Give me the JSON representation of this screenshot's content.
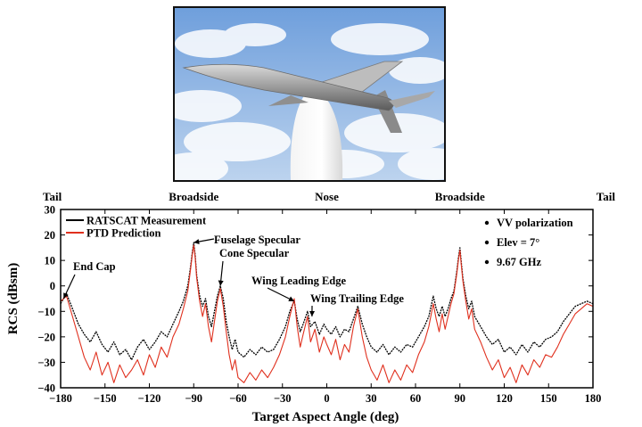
{
  "photo": {
    "icon": "airplane-model-on-pylon-icon",
    "sky_color": "#8fb8e8"
  },
  "chart_data": {
    "type": "line",
    "xlabel": "Target Aspect Angle (deg)",
    "ylabel": "RCS (dBsm)",
    "xlim": [
      -180,
      180
    ],
    "ylim": [
      -40,
      30
    ],
    "x_ticks": [
      -180,
      -150,
      -120,
      -90,
      -60,
      -30,
      0,
      30,
      60,
      90,
      120,
      150,
      180
    ],
    "y_ticks": [
      30,
      20,
      10,
      0,
      -10,
      -20,
      -30,
      -40
    ],
    "x_tick_labels": [
      "−180",
      "−150",
      "−120",
      "−90",
      "−60",
      "−30",
      "0",
      "30",
      "60",
      "90",
      "120",
      "150",
      "180"
    ],
    "y_tick_labels": [
      "30",
      "20",
      "10",
      "0",
      "−10",
      "−20",
      "−30",
      "−40"
    ],
    "grid": false,
    "legend_placement": "top-left",
    "top_labels": [
      {
        "text": "Tail",
        "x": -180
      },
      {
        "text": "Broadside",
        "x": -90
      },
      {
        "text": "Nose",
        "x": 0
      },
      {
        "text": "Broadside",
        "x": 90
      },
      {
        "text": "Tail",
        "x": 180
      }
    ],
    "info_lines": [
      "VV polarization",
      "Elev = 7°",
      "9.67 GHz"
    ],
    "series": [
      {
        "name": "RATSCAT Measurement",
        "color": "#000000",
        "points": [
          [
            -180,
            -7
          ],
          [
            -176,
            -3
          ],
          [
            -172,
            -9
          ],
          [
            -168,
            -15
          ],
          [
            -164,
            -19
          ],
          [
            -160,
            -22
          ],
          [
            -156,
            -18
          ],
          [
            -152,
            -23
          ],
          [
            -148,
            -26
          ],
          [
            -144,
            -22
          ],
          [
            -140,
            -27
          ],
          [
            -136,
            -25
          ],
          [
            -132,
            -29
          ],
          [
            -128,
            -24
          ],
          [
            -124,
            -21
          ],
          [
            -120,
            -25
          ],
          [
            -116,
            -22
          ],
          [
            -112,
            -18
          ],
          [
            -108,
            -20
          ],
          [
            -104,
            -15
          ],
          [
            -100,
            -10
          ],
          [
            -97,
            -6
          ],
          [
            -94,
            0
          ],
          [
            -92,
            8
          ],
          [
            -91,
            13
          ],
          [
            -90,
            17
          ],
          [
            -89,
            12
          ],
          [
            -88,
            4
          ],
          [
            -86,
            -4
          ],
          [
            -84,
            -8
          ],
          [
            -82,
            -5
          ],
          [
            -80,
            -12
          ],
          [
            -78,
            -16
          ],
          [
            -76,
            -10
          ],
          [
            -74,
            -4
          ],
          [
            -72,
            0
          ],
          [
            -70,
            -5
          ],
          [
            -68,
            -14
          ],
          [
            -66,
            -20
          ],
          [
            -64,
            -25
          ],
          [
            -62,
            -21
          ],
          [
            -60,
            -26
          ],
          [
            -56,
            -28
          ],
          [
            -52,
            -25
          ],
          [
            -48,
            -27
          ],
          [
            -44,
            -24
          ],
          [
            -40,
            -26
          ],
          [
            -36,
            -25
          ],
          [
            -32,
            -21
          ],
          [
            -28,
            -16
          ],
          [
            -25,
            -10
          ],
          [
            -22,
            -6
          ],
          [
            -20,
            -13
          ],
          [
            -18,
            -18
          ],
          [
            -16,
            -15
          ],
          [
            -13,
            -10
          ],
          [
            -11,
            -16
          ],
          [
            -8,
            -14
          ],
          [
            -5,
            -19
          ],
          [
            -2,
            -15
          ],
          [
            0,
            -17
          ],
          [
            3,
            -19
          ],
          [
            6,
            -16
          ],
          [
            9,
            -20
          ],
          [
            12,
            -17
          ],
          [
            15,
            -18
          ],
          [
            18,
            -13
          ],
          [
            21,
            -8
          ],
          [
            24,
            -15
          ],
          [
            27,
            -20
          ],
          [
            30,
            -24
          ],
          [
            34,
            -26
          ],
          [
            38,
            -23
          ],
          [
            42,
            -27
          ],
          [
            46,
            -24
          ],
          [
            50,
            -26
          ],
          [
            54,
            -23
          ],
          [
            58,
            -24
          ],
          [
            62,
            -20
          ],
          [
            66,
            -16
          ],
          [
            69,
            -12
          ],
          [
            72,
            -4
          ],
          [
            74,
            -9
          ],
          [
            76,
            -12
          ],
          [
            78,
            -8
          ],
          [
            80,
            -12
          ],
          [
            82,
            -9
          ],
          [
            84,
            -5
          ],
          [
            86,
            -2
          ],
          [
            88,
            6
          ],
          [
            89,
            11
          ],
          [
            90,
            15
          ],
          [
            91,
            9
          ],
          [
            92,
            3
          ],
          [
            94,
            -4
          ],
          [
            96,
            -9
          ],
          [
            98,
            -6
          ],
          [
            100,
            -12
          ],
          [
            104,
            -16
          ],
          [
            108,
            -20
          ],
          [
            112,
            -23
          ],
          [
            116,
            -21
          ],
          [
            120,
            -26
          ],
          [
            124,
            -24
          ],
          [
            128,
            -27
          ],
          [
            132,
            -23
          ],
          [
            136,
            -26
          ],
          [
            140,
            -22
          ],
          [
            144,
            -24
          ],
          [
            148,
            -21
          ],
          [
            152,
            -20
          ],
          [
            156,
            -18
          ],
          [
            160,
            -14
          ],
          [
            164,
            -11
          ],
          [
            168,
            -8
          ],
          [
            172,
            -7
          ],
          [
            176,
            -6
          ],
          [
            180,
            -7
          ]
        ]
      },
      {
        "name": "PTD Prediction",
        "color": "#e0301e",
        "points": [
          [
            -180,
            -6
          ],
          [
            -176,
            -4
          ],
          [
            -172,
            -12
          ],
          [
            -168,
            -20
          ],
          [
            -164,
            -28
          ],
          [
            -160,
            -33
          ],
          [
            -156,
            -26
          ],
          [
            -152,
            -35
          ],
          [
            -148,
            -30
          ],
          [
            -144,
            -38
          ],
          [
            -140,
            -31
          ],
          [
            -136,
            -36
          ],
          [
            -132,
            -33
          ],
          [
            -128,
            -29
          ],
          [
            -124,
            -35
          ],
          [
            -120,
            -27
          ],
          [
            -116,
            -32
          ],
          [
            -112,
            -24
          ],
          [
            -108,
            -28
          ],
          [
            -104,
            -20
          ],
          [
            -100,
            -15
          ],
          [
            -97,
            -9
          ],
          [
            -94,
            -2
          ],
          [
            -92,
            7
          ],
          [
            -91,
            12
          ],
          [
            -90,
            16
          ],
          [
            -89,
            11
          ],
          [
            -88,
            3
          ],
          [
            -86,
            -6
          ],
          [
            -84,
            -12
          ],
          [
            -82,
            -7
          ],
          [
            -80,
            -16
          ],
          [
            -78,
            -22
          ],
          [
            -76,
            -14
          ],
          [
            -74,
            -6
          ],
          [
            -72,
            -1
          ],
          [
            -70,
            -8
          ],
          [
            -68,
            -18
          ],
          [
            -66,
            -27
          ],
          [
            -64,
            -33
          ],
          [
            -62,
            -29
          ],
          [
            -60,
            -36
          ],
          [
            -56,
            -38
          ],
          [
            -52,
            -34
          ],
          [
            -48,
            -37
          ],
          [
            -44,
            -33
          ],
          [
            -40,
            -36
          ],
          [
            -36,
            -32
          ],
          [
            -32,
            -27
          ],
          [
            -28,
            -20
          ],
          [
            -25,
            -12
          ],
          [
            -22,
            -5
          ],
          [
            -20,
            -16
          ],
          [
            -18,
            -24
          ],
          [
            -16,
            -19
          ],
          [
            -13,
            -12
          ],
          [
            -11,
            -22
          ],
          [
            -8,
            -17
          ],
          [
            -5,
            -26
          ],
          [
            -2,
            -20
          ],
          [
            0,
            -23
          ],
          [
            3,
            -27
          ],
          [
            6,
            -21
          ],
          [
            9,
            -29
          ],
          [
            12,
            -23
          ],
          [
            15,
            -26
          ],
          [
            18,
            -16
          ],
          [
            21,
            -9
          ],
          [
            24,
            -20
          ],
          [
            27,
            -28
          ],
          [
            30,
            -33
          ],
          [
            34,
            -37
          ],
          [
            38,
            -31
          ],
          [
            42,
            -38
          ],
          [
            46,
            -33
          ],
          [
            50,
            -37
          ],
          [
            54,
            -31
          ],
          [
            58,
            -34
          ],
          [
            62,
            -27
          ],
          [
            66,
            -22
          ],
          [
            69,
            -16
          ],
          [
            72,
            -7
          ],
          [
            74,
            -13
          ],
          [
            76,
            -18
          ],
          [
            78,
            -11
          ],
          [
            80,
            -17
          ],
          [
            82,
            -12
          ],
          [
            84,
            -7
          ],
          [
            86,
            -3
          ],
          [
            88,
            5
          ],
          [
            89,
            10
          ],
          [
            90,
            14
          ],
          [
            91,
            8
          ],
          [
            92,
            2
          ],
          [
            94,
            -6
          ],
          [
            96,
            -13
          ],
          [
            98,
            -9
          ],
          [
            100,
            -17
          ],
          [
            104,
            -22
          ],
          [
            108,
            -28
          ],
          [
            112,
            -33
          ],
          [
            116,
            -29
          ],
          [
            120,
            -36
          ],
          [
            124,
            -32
          ],
          [
            128,
            -38
          ],
          [
            132,
            -31
          ],
          [
            136,
            -35
          ],
          [
            140,
            -29
          ],
          [
            144,
            -32
          ],
          [
            148,
            -27
          ],
          [
            152,
            -28
          ],
          [
            156,
            -24
          ],
          [
            160,
            -19
          ],
          [
            164,
            -15
          ],
          [
            168,
            -11
          ],
          [
            172,
            -9
          ],
          [
            176,
            -7
          ],
          [
            180,
            -8
          ]
        ]
      }
    ],
    "annotations": [
      {
        "text": "End Cap",
        "x": -178,
        "y": -5
      },
      {
        "text": "Fuselage Specular",
        "x": -90,
        "y": 17
      },
      {
        "text": "Cone Specular",
        "x": -72,
        "y": 0
      },
      {
        "text": "Wing Leading Edge",
        "x": -22,
        "y": -6
      },
      {
        "text": "Wing Trailing Edge",
        "x": -10,
        "y": -12
      }
    ]
  }
}
